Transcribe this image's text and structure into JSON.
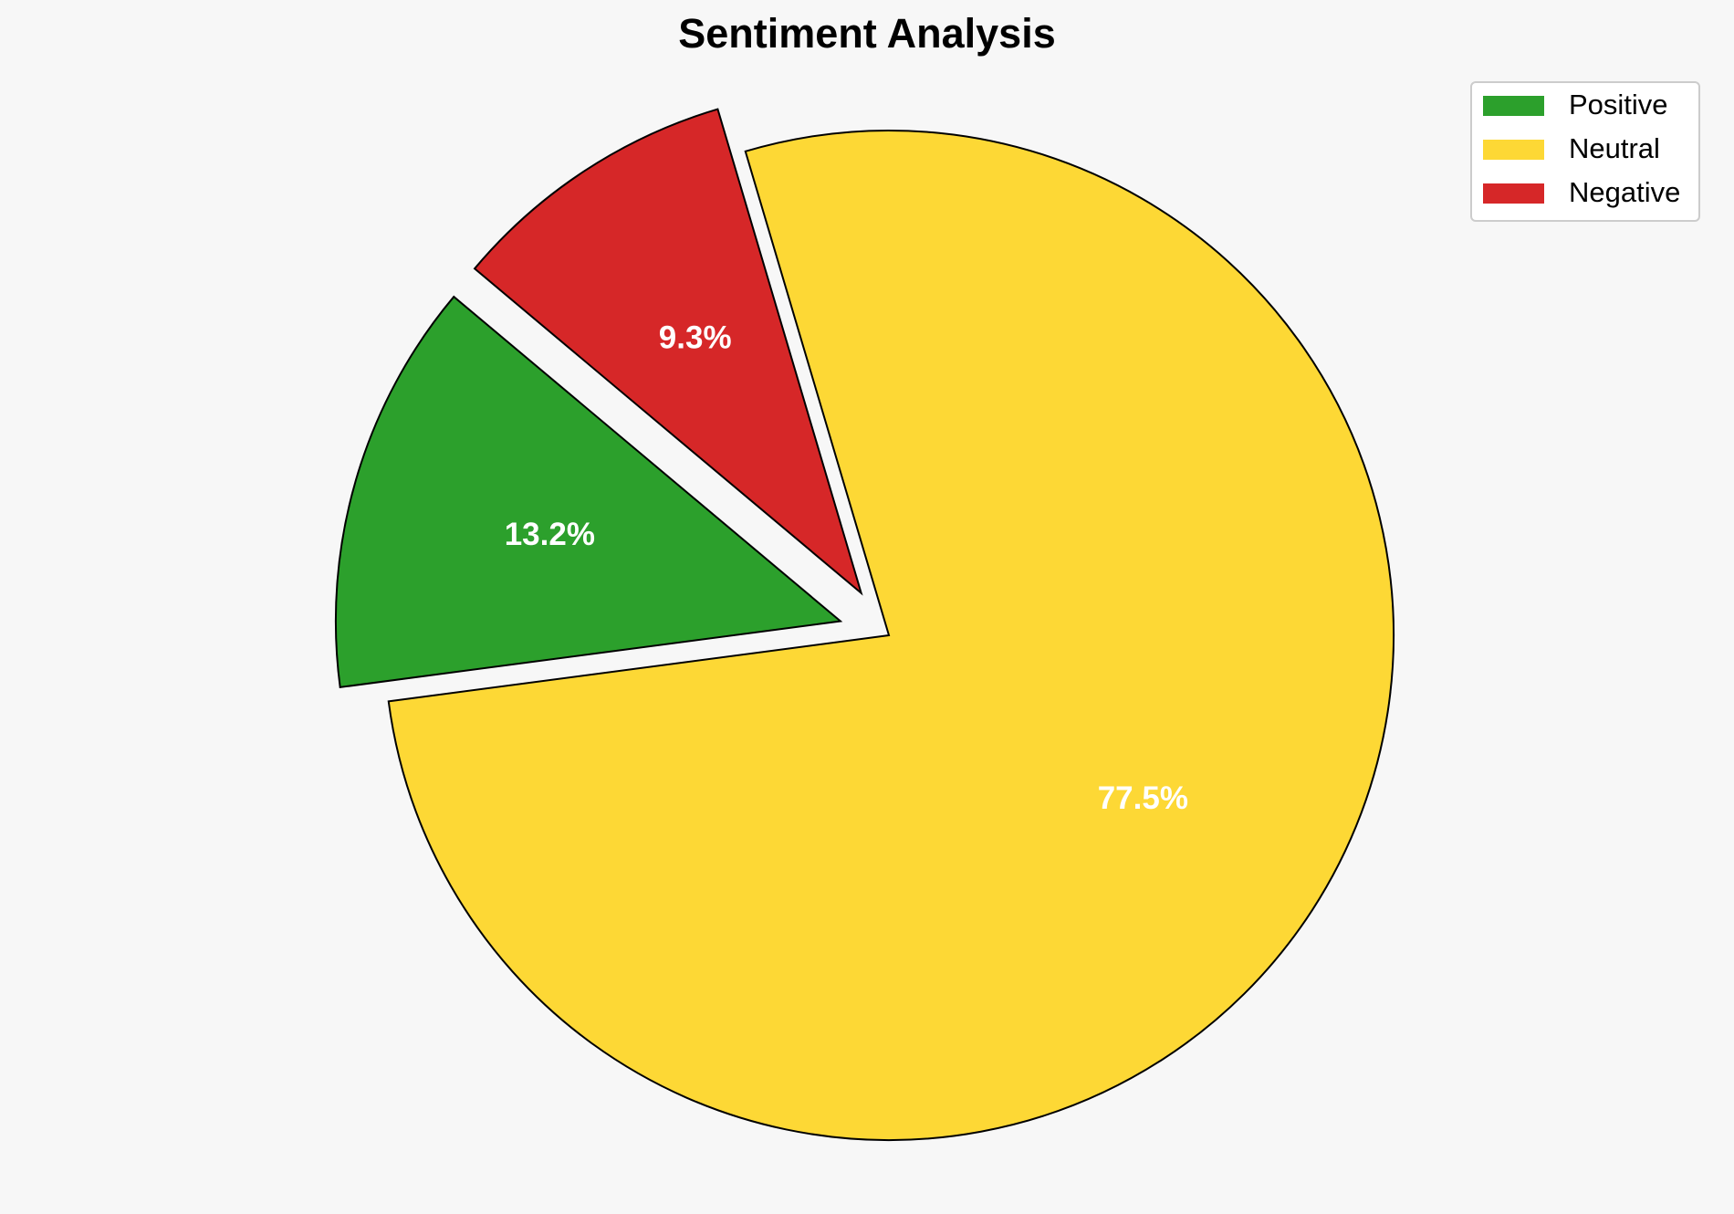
{
  "chart_data": {
    "type": "pie",
    "title": "Sentiment Analysis",
    "categories": [
      "Positive",
      "Neutral",
      "Negative"
    ],
    "values": [
      13.2,
      77.5,
      9.3
    ],
    "value_labels": [
      "13.2%",
      "77.5%",
      "9.3%"
    ],
    "colors": [
      "#2ca02c",
      "#fdd835",
      "#d62728"
    ],
    "explode": [
      0.1,
      0,
      0.1
    ],
    "startangle": 140,
    "legend": "upper right"
  }
}
